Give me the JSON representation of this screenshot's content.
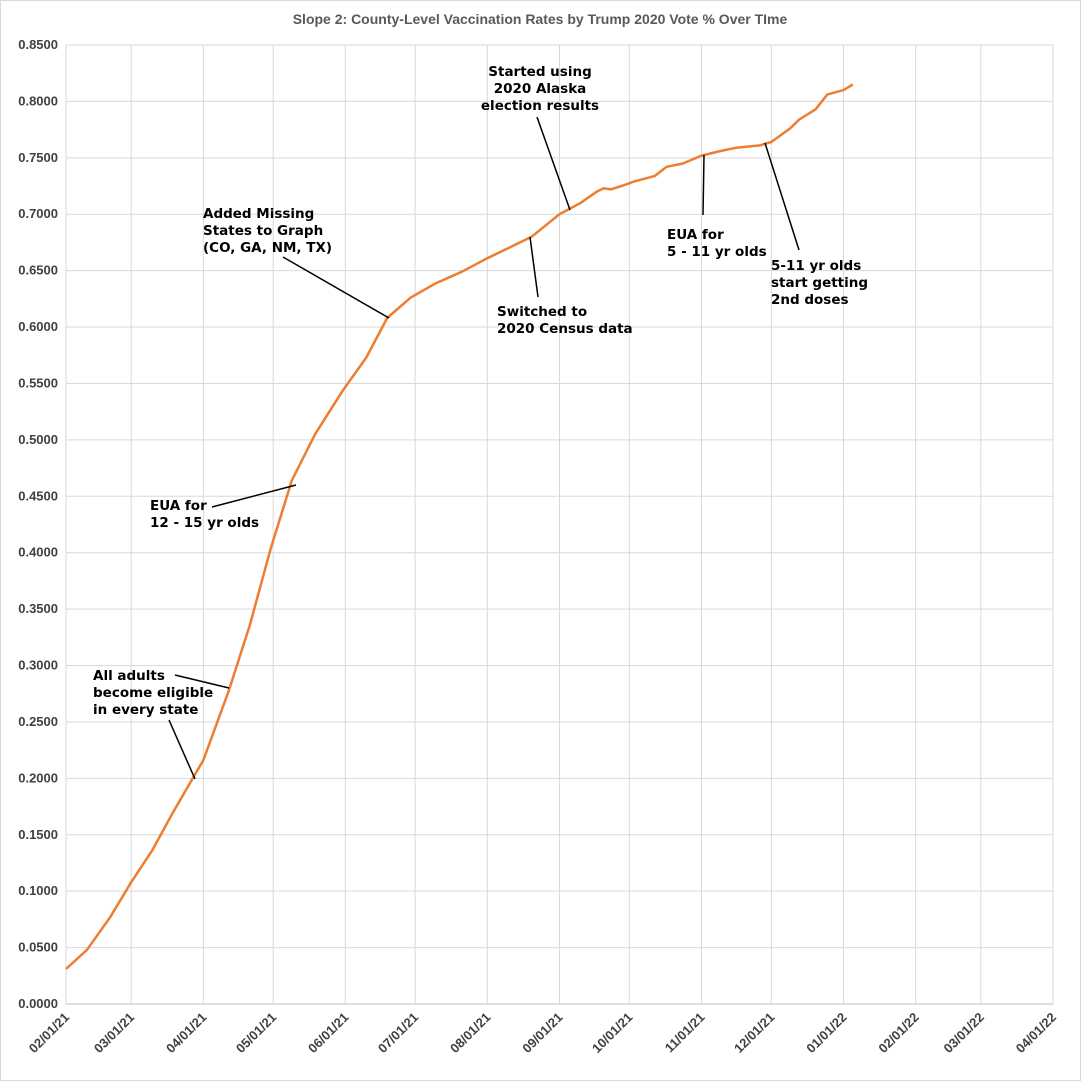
{
  "chart_data": {
    "type": "line",
    "title": "Slope 2: County-Level Vaccination Rates by Trump 2020 Vote % Over TIme",
    "xlabel": "",
    "ylabel": "",
    "xlim": [
      "2021-02-01",
      "2022-04-01"
    ],
    "ylim": [
      0,
      0.85
    ],
    "grid": true,
    "legend": "none",
    "line_color": "#ED7D31",
    "y_ticks": [
      "0.0000",
      "0.0500",
      "0.1000",
      "0.1500",
      "0.2000",
      "0.2500",
      "0.3000",
      "0.3500",
      "0.4000",
      "0.4500",
      "0.5000",
      "0.5500",
      "0.6000",
      "0.6500",
      "0.7000",
      "0.7500",
      "0.8000",
      "0.8500"
    ],
    "x_ticks": [
      "02/01/21",
      "03/01/21",
      "04/01/21",
      "05/01/21",
      "06/01/21",
      "07/01/21",
      "08/01/21",
      "09/01/21",
      "10/01/21",
      "11/01/21",
      "12/01/21",
      "01/01/22",
      "02/01/22",
      "03/01/22",
      "04/01/22"
    ],
    "series": [
      {
        "x": [
          "2021-02-01",
          "2021-02-10",
          "2021-02-20",
          "2021-03-01",
          "2021-03-10",
          "2021-03-19",
          "2021-03-28",
          "2021-04-01",
          "2021-04-12",
          "2021-04-21",
          "2021-04-30",
          "2021-05-09",
          "2021-05-19",
          "2021-05-31",
          "2021-06-10",
          "2021-06-19",
          "2021-06-29",
          "2021-07-10",
          "2021-07-21",
          "2021-08-01",
          "2021-08-11",
          "2021-08-20",
          "2021-09-01",
          "2021-09-10",
          "2021-09-17",
          "2021-09-20",
          "2021-09-23",
          "2021-09-29",
          "2021-10-03",
          "2021-10-12",
          "2021-10-17",
          "2021-10-24",
          "2021-11-01",
          "2021-11-09",
          "2021-11-16",
          "2021-11-26",
          "2021-12-01",
          "2021-12-09",
          "2021-12-13",
          "2021-12-20",
          "2021-12-25",
          "2022-01-01",
          "2022-01-05"
        ],
        "y": [
          0.031,
          0.048,
          0.077,
          0.108,
          0.136,
          0.17,
          0.202,
          0.216,
          0.278,
          0.336,
          0.404,
          0.464,
          0.505,
          0.544,
          0.573,
          0.608,
          0.626,
          0.639,
          0.649,
          0.661,
          0.671,
          0.68,
          0.7,
          0.71,
          0.72,
          0.723,
          0.722,
          0.726,
          0.729,
          0.734,
          0.742,
          0.745,
          0.752,
          0.756,
          0.759,
          0.761,
          0.764,
          0.776,
          0.784,
          0.793,
          0.806,
          0.81,
          0.815
        ]
      }
    ],
    "annotations": [
      {
        "lines": [
          "All adults",
          "become eligible",
          "in every state"
        ]
      },
      {
        "lines": [
          "EUA for",
          "12 - 15 yr olds"
        ]
      },
      {
        "lines": [
          "Added Missing",
          "States to Graph",
          "(CO, GA, NM, TX)"
        ]
      },
      {
        "lines": [
          "Started using",
          "2020 Alaska",
          "election results"
        ]
      },
      {
        "lines": [
          "Switched to",
          "2020 Census data"
        ]
      },
      {
        "lines": [
          "EUA for",
          "5 - 11 yr olds"
        ]
      },
      {
        "lines": [
          "5-11 yr olds",
          "start getting",
          "2nd doses"
        ]
      }
    ]
  }
}
